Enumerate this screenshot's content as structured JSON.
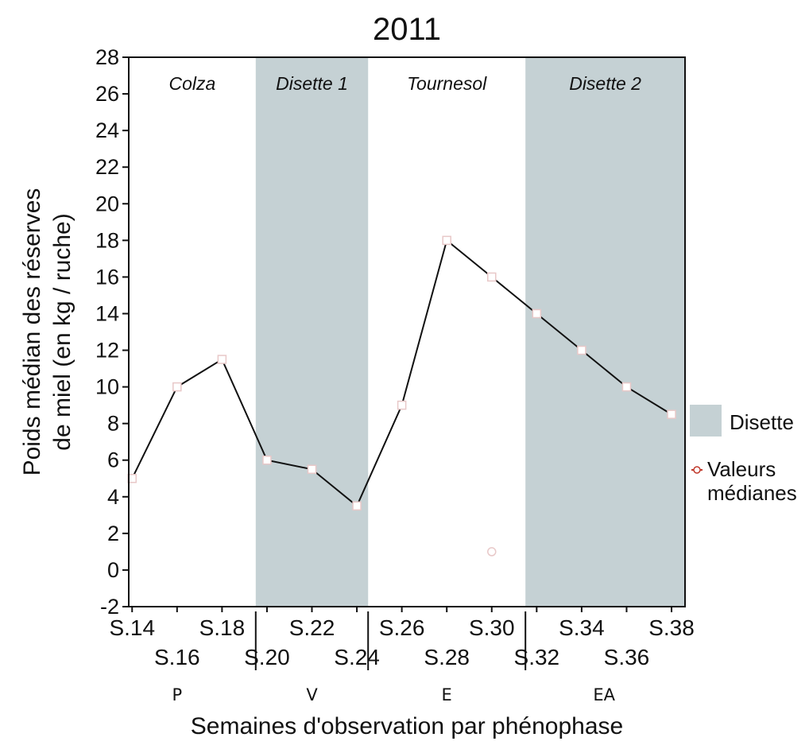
{
  "chart_data": {
    "type": "line",
    "title": "2011",
    "xlabel": "Semaines d'observation par phénophase",
    "ylabel": [
      "Poids médian des réserves",
      "de miel (en kg / ruche)"
    ],
    "ylim": [
      -2,
      28
    ],
    "yticks": [
      -2,
      0,
      2,
      4,
      6,
      8,
      10,
      12,
      14,
      16,
      18,
      20,
      22,
      24,
      26,
      28
    ],
    "xlim": [
      13.85,
      38.6
    ],
    "x_ticks_top": [
      {
        "week": 14,
        "label": "S.14"
      },
      {
        "week": 18,
        "label": "S.18"
      },
      {
        "week": 22,
        "label": "S.22"
      },
      {
        "week": 26,
        "label": "S.26"
      },
      {
        "week": 30,
        "label": "S.30"
      },
      {
        "week": 34,
        "label": "S.34"
      },
      {
        "week": 38,
        "label": "S.38"
      }
    ],
    "x_ticks_bottom": [
      {
        "week": 16,
        "label": "S.16"
      },
      {
        "week": 20,
        "label": "S.20"
      },
      {
        "week": 24,
        "label": "S.24"
      },
      {
        "week": 28,
        "label": "S.28"
      },
      {
        "week": 32,
        "label": "S.32"
      },
      {
        "week": 36,
        "label": "S.36"
      }
    ],
    "phase_dividers": [
      19.5,
      24.5,
      31.5
    ],
    "phenophases": [
      {
        "label": "P",
        "week": 16
      },
      {
        "label": "V",
        "week": 22
      },
      {
        "label": "E",
        "week": 28
      },
      {
        "label": "EA",
        "week": 35
      }
    ],
    "bands": [
      {
        "label": "Colza",
        "x0": 13.85,
        "x1": 19.5,
        "shaded": false
      },
      {
        "label": "Disette 1",
        "x0": 19.5,
        "x1": 24.5,
        "shaded": true
      },
      {
        "label": "Tournesol",
        "x0": 24.5,
        "x1": 31.5,
        "shaded": false
      },
      {
        "label": "Disette 2",
        "x0": 31.5,
        "x1": 38.6,
        "shaded": true
      }
    ],
    "series": [
      {
        "name": "Valeurs médianes",
        "segments": [
          [
            [
              14,
              5
            ],
            [
              16,
              10
            ],
            [
              18,
              11.5
            ],
            [
              20,
              6
            ],
            [
              22,
              5.5
            ],
            [
              24,
              3.5
            ],
            [
              26,
              9
            ],
            [
              28,
              18
            ],
            [
              30,
              16
            ],
            [
              32,
              14
            ],
            [
              34,
              12
            ],
            [
              36,
              10
            ],
            [
              38,
              8.5
            ]
          ]
        ]
      }
    ],
    "outliers": [
      [
        30,
        1
      ]
    ],
    "legend": {
      "position": "right",
      "items": [
        {
          "label": "Disette",
          "kind": "band"
        },
        {
          "label": [
            "Valeurs",
            "médianes"
          ],
          "kind": "marker"
        }
      ]
    },
    "colors": {
      "band": "#c5d1d4",
      "line": "#111111",
      "marker_fill": "#ffffff",
      "marker_stroke": "#e8c8c8",
      "legend_marker": "#c0392b"
    }
  }
}
